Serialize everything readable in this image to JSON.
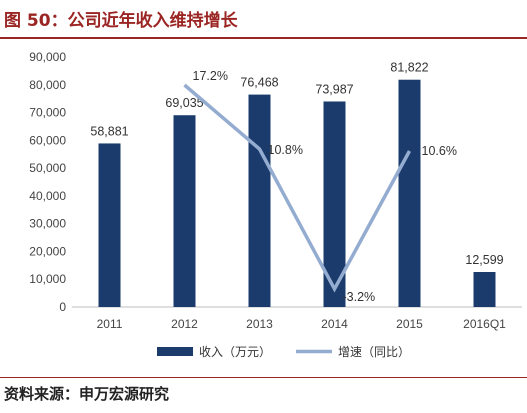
{
  "header": {
    "title": "图 50：公司近年收入维持增长"
  },
  "footer": {
    "source": "资料来源：申万宏源研究"
  },
  "colors": {
    "bar": "#1a3b6b",
    "line": "#93acd0",
    "title": "#9a2523"
  },
  "chart_data": {
    "type": "bar",
    "categories": [
      "2011",
      "2012",
      "2013",
      "2014",
      "2015",
      "2016Q1"
    ],
    "ylim": [
      0,
      90000
    ],
    "y_ticks": [
      "0",
      "10,000",
      "20,000",
      "30,000",
      "40,000",
      "50,000",
      "60,000",
      "70,000",
      "80,000",
      "90,000"
    ],
    "y_tick_values": [
      0,
      10000,
      20000,
      30000,
      40000,
      50000,
      60000,
      70000,
      80000,
      90000
    ],
    "grid": false,
    "legend_position": "bottom",
    "series": [
      {
        "name": "收入（万元）",
        "type": "bar",
        "values": [
          58881,
          69035,
          76468,
          73987,
          81822,
          12599
        ],
        "labels": [
          "58,881",
          "69,035",
          "76,468",
          "73,987",
          "81,822",
          "12,599"
        ]
      },
      {
        "name": "增速（同比）",
        "type": "line",
        "x": [
          "2012",
          "2013",
          "2014",
          "2015"
        ],
        "values": [
          17.2,
          10.8,
          -3.2,
          10.6
        ],
        "labels": [
          "17.2%",
          "10.8%",
          "-3.2%",
          "10.6%"
        ],
        "secondary_range": [
          -5,
          20
        ]
      }
    ]
  }
}
